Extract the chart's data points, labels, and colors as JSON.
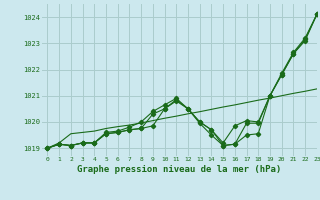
{
  "title": "Graphe pression niveau de la mer (hPa)",
  "bg_color": "#cce8ee",
  "grid_color": "#aacccc",
  "line_color": "#1a6b1a",
  "xlim": [
    -0.5,
    23
  ],
  "ylim": [
    1018.7,
    1024.5
  ],
  "xticks": [
    0,
    1,
    2,
    3,
    4,
    5,
    6,
    7,
    8,
    9,
    10,
    11,
    12,
    13,
    14,
    15,
    16,
    17,
    18,
    19,
    20,
    21,
    22,
    23
  ],
  "yticks": [
    1019,
    1020,
    1021,
    1022,
    1023,
    1024
  ],
  "series": [
    [
      1019.0,
      1019.15,
      1019.1,
      1019.2,
      1019.2,
      1019.55,
      1019.6,
      1019.7,
      1019.75,
      1019.85,
      1020.5,
      1020.8,
      1020.5,
      1020.0,
      1019.7,
      1019.1,
      1019.15,
      1019.5,
      1019.55,
      1021.0,
      1021.8,
      1022.6,
      1023.1,
      1024.1
    ],
    [
      1019.0,
      1019.15,
      1019.1,
      1019.2,
      1019.2,
      1019.55,
      1019.6,
      1019.7,
      1019.75,
      1020.3,
      1020.5,
      1020.85,
      1020.5,
      1019.95,
      1019.5,
      1019.1,
      1019.15,
      1019.95,
      1019.95,
      1021.0,
      1021.8,
      1022.6,
      1023.15,
      1024.1
    ],
    [
      1019.0,
      1019.15,
      1019.1,
      1019.2,
      1019.2,
      1019.6,
      1019.65,
      1019.8,
      1020.0,
      1020.4,
      1020.65,
      1020.9,
      1020.5,
      1020.0,
      1019.7,
      1019.2,
      1019.85,
      1020.05,
      1020.0,
      1021.0,
      1021.85,
      1022.65,
      1023.2,
      1024.1
    ],
    [
      1019.0,
      1019.2,
      1019.55,
      1019.6,
      1019.65,
      1019.75,
      1019.82,
      1019.88,
      1019.96,
      1020.05,
      1020.14,
      1020.22,
      1020.31,
      1020.39,
      1020.48,
      1020.57,
      1020.65,
      1020.74,
      1020.83,
      1020.91,
      1021.0,
      1021.09,
      1021.17,
      1021.26
    ]
  ]
}
